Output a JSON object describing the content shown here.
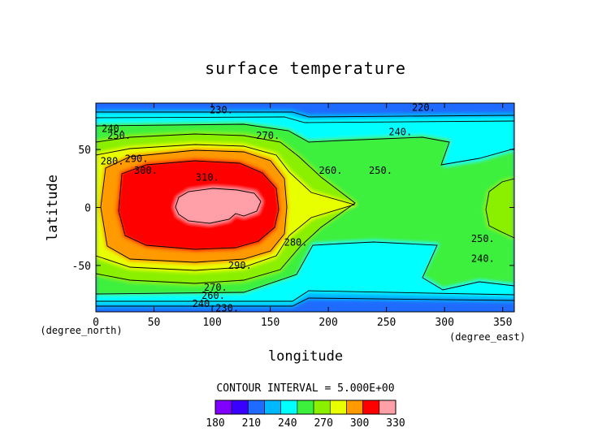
{
  "chart_data": {
    "type": "heatmap",
    "title": "surface temperature",
    "xlabel": "longitude",
    "ylabel": "latitude",
    "x_unit": "(degree_east)",
    "y_unit": "(degree_north)",
    "xlim": [
      0,
      360
    ],
    "ylim": [
      -90,
      90
    ],
    "x_ticks": [
      "0",
      "50",
      "100",
      "150",
      "200",
      "250",
      "300",
      "350"
    ],
    "y_ticks": [
      "50",
      "0",
      "-50"
    ],
    "contour_interval_label": "CONTOUR INTERVAL = 5.000E+00",
    "colorbar": {
      "ticks": [
        "180",
        "210",
        "240",
        "270",
        "300",
        "330"
      ],
      "levels": [
        180,
        195,
        210,
        225,
        240,
        255,
        270,
        285,
        300,
        315,
        330
      ],
      "colors": [
        "#7f00ff",
        "#3a00ff",
        "#1f6bff",
        "#00b8ff",
        "#00ffff",
        "#3cf03c",
        "#8af000",
        "#e8ff00",
        "#ff9a00",
        "#ff0000",
        "#ff9fa8"
      ]
    },
    "contour_labels": [
      {
        "text": "230.",
        "lon": 108,
        "lat": 84
      },
      {
        "text": "220.",
        "lon": 282,
        "lat": 86
      },
      {
        "text": "240.",
        "lon": 262,
        "lat": 65
      },
      {
        "text": "240.",
        "lon": 15,
        "lat": 68
      },
      {
        "text": "250.",
        "lon": 20,
        "lat": 62
      },
      {
        "text": "270.",
        "lon": 148,
        "lat": 62
      },
      {
        "text": "280.",
        "lon": 14,
        "lat": 40
      },
      {
        "text": "290.",
        "lon": 35,
        "lat": 42
      },
      {
        "text": "300.",
        "lon": 43,
        "lat": 32
      },
      {
        "text": "310.",
        "lon": 96,
        "lat": 26
      },
      {
        "text": "260.",
        "lon": 202,
        "lat": 32
      },
      {
        "text": "250.",
        "lon": 245,
        "lat": 32
      },
      {
        "text": "280.",
        "lon": 172,
        "lat": -30
      },
      {
        "text": "290.",
        "lon": 124,
        "lat": -50
      },
      {
        "text": "250.",
        "lon": 333,
        "lat": -27
      },
      {
        "text": "240.",
        "lon": 333,
        "lat": -44
      },
      {
        "text": "270.",
        "lon": 103,
        "lat": -69
      },
      {
        "text": "260.",
        "lon": 101,
        "lat": -76
      },
      {
        "text": "240.",
        "lon": 93,
        "lat": -83
      },
      {
        "text": "230.",
        "lon": 113,
        "lat": -87
      }
    ]
  }
}
